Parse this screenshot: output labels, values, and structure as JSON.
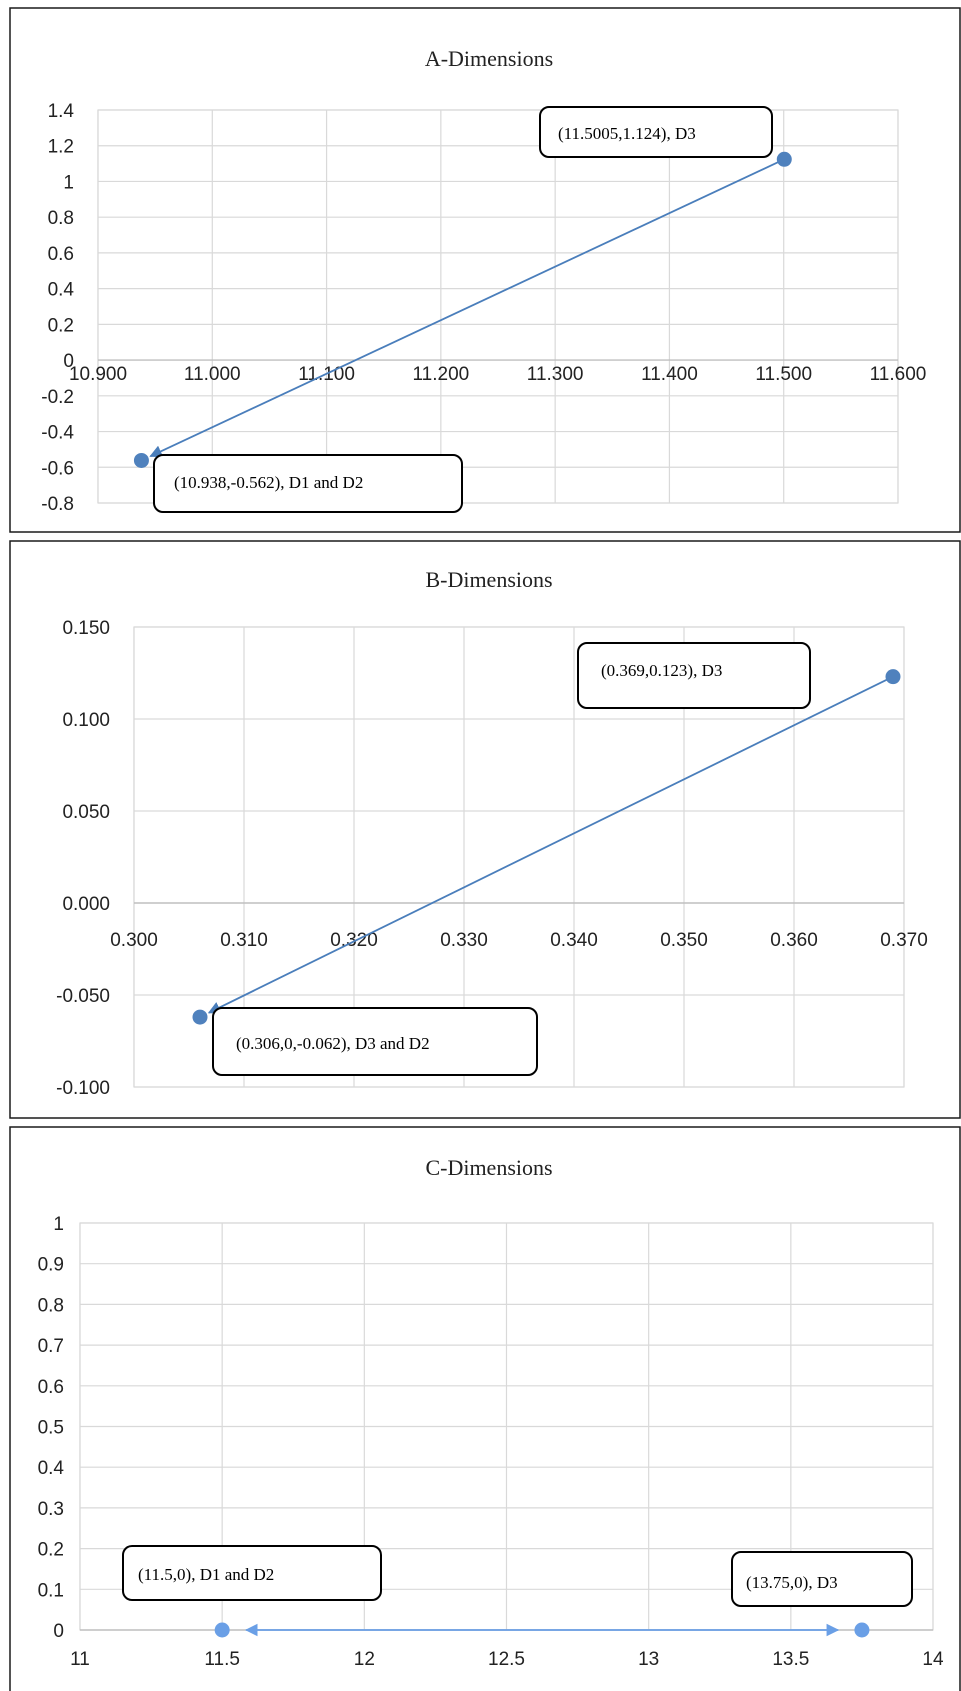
{
  "chart_data": [
    {
      "type": "scatter",
      "title": "A-Dimensions",
      "xlim": [
        10.9,
        11.6
      ],
      "ylim": [
        -0.8,
        1.4
      ],
      "xticks": [
        "10.900",
        "11.000",
        "11.100",
        "11.200",
        "11.300",
        "11.400",
        "11.500",
        "11.600"
      ],
      "yticks": [
        "1.4",
        "1.2",
        "1",
        "0.8",
        "0.6",
        "0.4",
        "0.2",
        "0",
        "-0.2",
        "-0.4",
        "-0.6",
        "-0.8"
      ],
      "points": [
        {
          "x": 10.938,
          "y": -0.562
        },
        {
          "x": 11.5005,
          "y": 1.124
        }
      ],
      "arrow": {
        "from": [
          11.5005,
          1.124
        ],
        "to": [
          10.938,
          -0.562
        ]
      },
      "annotations": [
        "(11.5005,1.124), D3",
        "(10.938,-0.562), D1  and D2"
      ],
      "grid": true,
      "color": "#4a7ebb",
      "point_color": "#4f81bd"
    },
    {
      "type": "scatter",
      "title": "B-Dimensions",
      "xlim": [
        0.3,
        0.37
      ],
      "ylim": [
        -0.1,
        0.15
      ],
      "xticks": [
        "0.300",
        "0.310",
        "0.320",
        "0.330",
        "0.340",
        "0.350",
        "0.360",
        "0.370"
      ],
      "yticks": [
        "0.150",
        "0.100",
        "0.050",
        "0.000",
        "-0.050",
        "-0.100"
      ],
      "points": [
        {
          "x": 0.306,
          "y": -0.062
        },
        {
          "x": 0.369,
          "y": 0.123
        }
      ],
      "arrow": {
        "from": [
          0.369,
          0.123
        ],
        "to": [
          0.306,
          -0.062
        ]
      },
      "annotations": [
        "(0.369,0.123), D3",
        "(0.306,0,-0.062), D3 and D2"
      ],
      "grid": true,
      "color": "#4a7ebb",
      "point_color": "#4f81bd"
    },
    {
      "type": "scatter",
      "title": "C-Dimensions",
      "xlim": [
        11,
        14
      ],
      "ylim": [
        0,
        1
      ],
      "xticks": [
        "11",
        "11.5",
        "12",
        "12.5",
        "13",
        "13.5",
        "14"
      ],
      "yticks": [
        "1",
        "0.9",
        "0.8",
        "0.7",
        "0.6",
        "0.5",
        "0.4",
        "0.3",
        "0.2",
        "0.1",
        "0"
      ],
      "points": [
        {
          "x": 11.5,
          "y": 0
        },
        {
          "x": 13.75,
          "y": 0
        }
      ],
      "arrow": {
        "double": true,
        "from": [
          11.5,
          0
        ],
        "to": [
          13.75,
          0
        ]
      },
      "annotations": [
        "(11.5,0), D1 and D2",
        "(13.75,0), D3"
      ],
      "grid": true,
      "color": "#6a9fe6",
      "point_color": "#6a9fe6"
    }
  ]
}
